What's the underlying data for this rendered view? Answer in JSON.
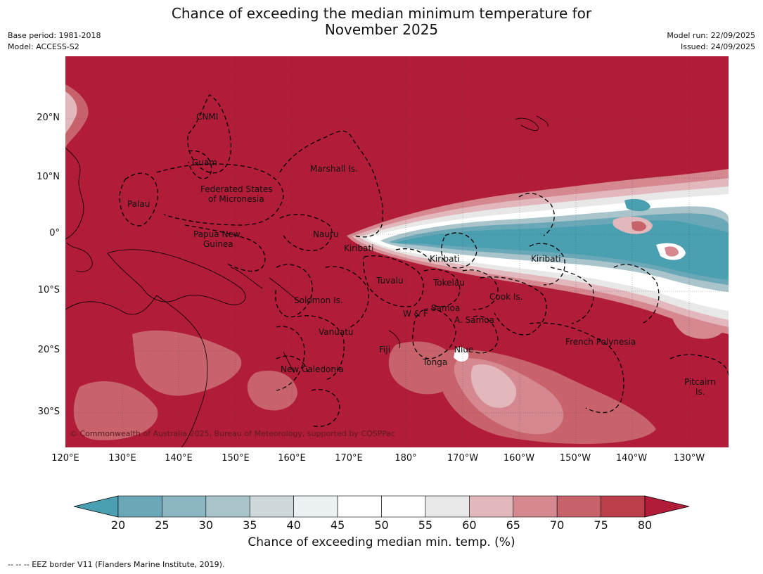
{
  "title_line1": "Chance of exceeding the median minimum temperature for",
  "title_line2": "November 2025",
  "base_period": "Base period: 1981-2018",
  "model": "Model: ACCESS-S2",
  "model_run": "Model run: 22/09/2025",
  "issued": "Issued: 24/09/2025",
  "copyright": "© Commonwealth of Australia 2025, Bureau of Meteorology, supported by COSPPac",
  "lon_labels": [
    "120°E",
    "130°E",
    "140°E",
    "150°E",
    "160°E",
    "170°E",
    "180°",
    "170°W",
    "160°W",
    "150°W",
    "140°W",
    "130°W"
  ],
  "lat_labels": [
    "20°N",
    "10°N",
    "0°",
    "10°S",
    "20°S",
    "30°S"
  ],
  "region_labels": [
    "CNMI",
    "Guam",
    "Marshall Is.",
    "Federated States",
    "of Micronesia",
    "Palau",
    "Papua New",
    "Guinea",
    "Nauru",
    "Kiribati",
    "Kiribati",
    "Kiribati",
    "Tuvalu",
    "Tokelau",
    "Solomon Is.",
    "Samoa",
    "W & F",
    "Cook Is.",
    "A. Samoa",
    "Vanuatu",
    "Fiji",
    "Niue",
    "Tonga",
    "French Polynesia",
    "New Caledonia",
    "Pitcairn",
    "Is."
  ],
  "colorbar": {
    "ticks": [
      "20",
      "25",
      "30",
      "35",
      "40",
      "45",
      "50",
      "55",
      "60",
      "65",
      "70",
      "75",
      "80"
    ],
    "colors": [
      "#4a9fb0",
      "#6aa7b7",
      "#8ab6c2",
      "#a9c5cb",
      "#cfd8da",
      "#ecf1f2",
      "#ffffff",
      "#ffffff",
      "#e8e8e8",
      "#e2b8bd",
      "#d5888f",
      "#c8636c",
      "#bd3f4c",
      "#b11c38"
    ],
    "label": "Chance of exceeding median min. temp. (%)"
  },
  "colors": {
    "high": "#b11c38",
    "low": "#4a9fb0"
  },
  "footnote": "--  --  -- EEZ border V11 (Flanders Marine Institute, 2019)."
}
